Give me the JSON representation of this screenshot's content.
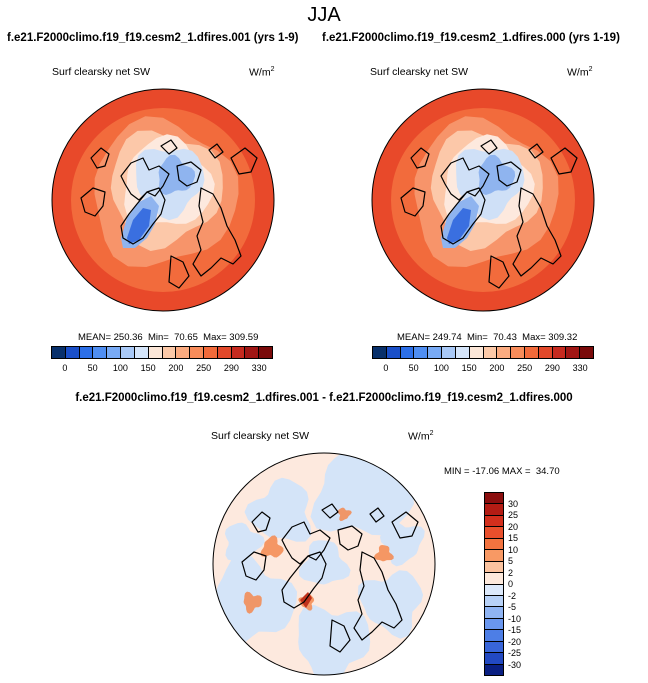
{
  "title": "JJA",
  "case_title_left": "f.e21.F2000climo.f19_f19.cesm2_1.dfires.001 (yrs 1-9)",
  "case_title_right": "f.e21.F2000climo.f19_f19.cesm2_1.dfires.000 (yrs 1-19)",
  "diff_title": "f.e21.F2000climo.f19_f19.cesm2_1.dfires.001 - f.e21.F2000climo.f19_f19.cesm2_1.dfires.000",
  "panels": [
    {
      "variable": "Surf clearsky net SW",
      "units_base": "W/m",
      "units_exp": "2",
      "stats": "MEAN= 250.36  Min=  70.65  Max= 309.59",
      "mean": 250.36,
      "min": 70.65,
      "max": 309.59
    },
    {
      "variable": "Surf clearsky net SW",
      "units_base": "W/m",
      "units_exp": "2",
      "stats": "MEAN= 249.74  Min=  70.43  Max= 309.32",
      "mean": 249.74,
      "min": 70.43,
      "max": 309.32
    }
  ],
  "diff_panel": {
    "variable": "Surf clearsky net SW",
    "units_base": "W/m",
    "units_exp": "2",
    "stats": "MIN = -17.06 MAX =  34.70",
    "min": -17.06,
    "max": 34.7
  },
  "colorbar_main": {
    "labels": [
      "0",
      "50",
      "100",
      "150",
      "200",
      "250",
      "290",
      "330"
    ],
    "colors": [
      "#08306b",
      "#1a4fc8",
      "#2c6fe8",
      "#4f8ef2",
      "#78aaf5",
      "#a9c9f7",
      "#d5e5fa",
      "#fbe6d7",
      "#fcc9a8",
      "#fbab80",
      "#f88c5a",
      "#f26a3a",
      "#e2482a",
      "#c62a1f",
      "#a01614",
      "#7a0a0a"
    ]
  },
  "colorbar_diff": {
    "labels": [
      "30",
      "25",
      "20",
      "15",
      "10",
      "5",
      "2",
      "0",
      "-2",
      "-5",
      "-10",
      "-15",
      "-20",
      "-25",
      "-30"
    ],
    "colors": [
      "#8b0e0e",
      "#b41c14",
      "#d32f1d",
      "#e94f2c",
      "#f3733f",
      "#f89964",
      "#fbc39f",
      "#fde9dc",
      "#dce9fb",
      "#b7d1f7",
      "#8fb4f3",
      "#6a97ef",
      "#4d7ee6",
      "#3865d9",
      "#2249c2",
      "#0a1f82"
    ]
  },
  "map_colors": {
    "hot": "#e8492a",
    "warm": "#f26b3c",
    "mid": "#f7946a",
    "light": "#fcc8a9",
    "pale": "#fde9de",
    "ice": "#cfe0f7",
    "cold": "#8fb4ef",
    "deep": "#3a6fe0",
    "diff_bg": "#fde9de",
    "diff_blue": "#d4e4f8",
    "diff_red": "#f3884f"
  }
}
